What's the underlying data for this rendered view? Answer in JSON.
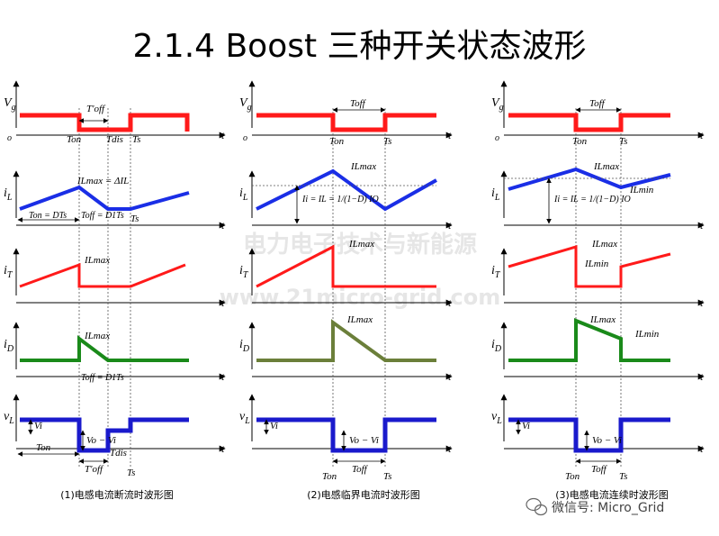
{
  "title": "2.1.4   Boost 三种开关状态波形",
  "watermark": {
    "line1": "电力电子技术与新能源",
    "line2": "www.21micro-grid.com"
  },
  "wechat_label": "微信号: Micro_Grid",
  "colors": {
    "vg": "#ff1a1a",
    "iL": "#1a2ee6",
    "iT": "#ff1a1a",
    "iD_1": "#1a8a1a",
    "iD_2": "#6b7f3a",
    "iD_3": "#1a8a1a",
    "vL": "#1a1acc"
  },
  "axis": {
    "t": "t",
    "origin": "o"
  },
  "row_labels": {
    "vg": "V g",
    "iL": "i L",
    "iT": "i T",
    "iD": "i D",
    "vL": "v L"
  },
  "panels": [
    {
      "caption": "(1)电感电流断流时波形图",
      "mode": "discontinuous",
      "annotations": {
        "toff_prime": "T'off",
        "ton": "Ton",
        "tdis": "Tdis",
        "ts": "Ts",
        "iLmax_delta": "ILmax = ΔIL",
        "ton_eq": "Ton = DTs",
        "toff_eq": "Toff = D1Ts",
        "iLmax_T": "ILmax",
        "iLmax_D": "ILmax",
        "toff_vl": "Toff = D1Ts",
        "vi": "Vi",
        "vo_vi": "Vo − Vi",
        "ton_vl": "Ton",
        "tdis_vl": "Tdis",
        "toff_prime_vl": "T'off",
        "ts_vl": "Ts"
      }
    },
    {
      "caption": "(2)电感临界电流时波形图",
      "mode": "critical",
      "annotations": {
        "toff": "Toff",
        "ton": "Ton",
        "ts": "Ts",
        "iLmax": "ILmax",
        "iL_eq": "Ii = IL = 1/(1−D) IO",
        "iLmax_T": "ILmax",
        "iLmax_D": "ILmax",
        "vi": "Vi",
        "vo_vi": "Vo − Vi",
        "ton_vl": "Ton",
        "toff_vl": "Toff",
        "ts_vl": "Ts"
      }
    },
    {
      "caption": "(3)电感电流连续时波形图",
      "mode": "continuous",
      "annotations": {
        "toff": "Toff",
        "ton": "Ton",
        "ts": "Ts",
        "iLmax": "ILmax",
        "iLmin": "ILmin",
        "iL_eq": "Ii = IL = 1/(1−D) IO",
        "iLmax_T": "ILmax",
        "iLmin_T": "ILmin",
        "iLmax_D": "ILmax",
        "iLmin_D": "ILmin",
        "vi": "Vi",
        "vo_vi": "Vo − Vi",
        "ton_vl": "Ton",
        "toff_vl": "Toff",
        "ts_vl": "Ts"
      }
    }
  ]
}
